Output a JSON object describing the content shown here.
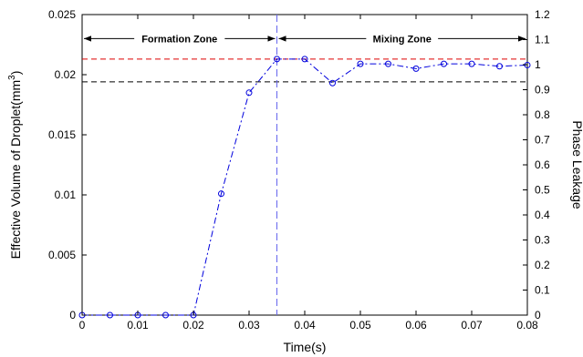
{
  "chart_data": {
    "type": "line",
    "x_label": "Time(s)",
    "y_label_left": "Effective Volume of Droplet(mm",
    "y_label_left_sup": "3",
    "y_label_left_suffix": ")",
    "y_label_right": "Phase Leakage",
    "xlim": [
      0,
      0.08
    ],
    "ylim_left": [
      0,
      0.025
    ],
    "ylim_right": [
      0,
      1.2
    ],
    "x_ticks": [
      "0",
      "0.01",
      "0.02",
      "0.03",
      "0.04",
      "0.05",
      "0.06",
      "0.07",
      "0.08"
    ],
    "y_left_ticks": [
      "0",
      "0.005",
      "0.01",
      "0.015",
      "0.02",
      "0.025"
    ],
    "y_right_ticks": [
      "0",
      "0.1",
      "0.2",
      "0.3",
      "0.4",
      "0.5",
      "0.6",
      "0.7",
      "0.8",
      "0.9",
      "1",
      "1.1",
      "1.2"
    ],
    "series": [
      {
        "color": "#0000dd",
        "style": "dash-dot with circle markers",
        "x": [
          0,
          0.005,
          0.01,
          0.015,
          0.02,
          0.025,
          0.03,
          0.035,
          0.04,
          0.045,
          0.05,
          0.055,
          0.06,
          0.065,
          0.07,
          0.075,
          0.08
        ],
        "y": [
          0,
          0,
          0,
          0,
          0,
          0.0101,
          0.0185,
          0.0213,
          0.0213,
          0.0193,
          0.0209,
          0.0209,
          0.0205,
          0.0209,
          0.0209,
          0.0207,
          0.0208
        ]
      }
    ],
    "reference_lines": [
      {
        "orientation": "horizontal",
        "axis": "left",
        "value": 0.0213,
        "color": "#dd0000",
        "style": "dashed"
      },
      {
        "orientation": "horizontal",
        "axis": "left",
        "value": 0.0194,
        "color": "#000000",
        "style": "dashed"
      },
      {
        "orientation": "vertical",
        "value": 0.035,
        "color": "#6666ee",
        "style": "dashed"
      }
    ],
    "annotations": [
      {
        "text": "Formation Zone",
        "x_from": 0,
        "x_to": 0.035,
        "y": 0.023
      },
      {
        "text": "Mixing Zone",
        "x_from": 0.035,
        "x_to": 0.08,
        "y": 0.023
      }
    ],
    "grid": false
  }
}
